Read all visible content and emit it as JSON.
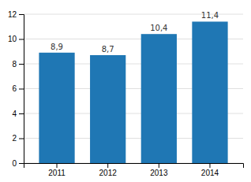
{
  "chart_data": {
    "type": "bar",
    "categories": [
      "2011",
      "2012",
      "2013",
      "2014"
    ],
    "values": [
      8.9,
      8.7,
      10.4,
      11.4
    ],
    "value_labels": [
      "8,9",
      "8,7",
      "10,4",
      "11,4"
    ],
    "data_labels": true,
    "ylim": [
      0,
      12
    ],
    "yticks": [
      0,
      2,
      4,
      6,
      8,
      10,
      12
    ],
    "grid": true
  }
}
